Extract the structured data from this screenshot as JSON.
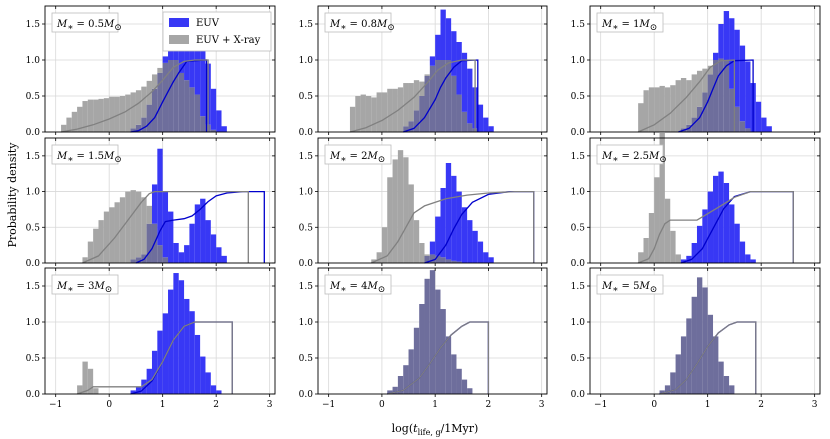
{
  "figure": {
    "ylabel": "Probability density",
    "xlabel_main": "log(",
    "xlabel_var": "t",
    "xlabel_sub": "life, g",
    "xlabel_tail": "/1Myr)",
    "x_ticks": [
      -1,
      0,
      1,
      2,
      3
    ],
    "y_ticks": [
      0.0,
      0.5,
      1.0,
      1.5
    ],
    "xlim": [
      -1.2,
      3.1
    ],
    "ylim": [
      0,
      1.75
    ],
    "legend": {
      "euv": "EUV",
      "xray": "EUV + X-ray"
    },
    "colors": {
      "euv_bar": "#3838f5",
      "xray_bar": "#a6a6a6",
      "overlap_bar": "#6e6e9c",
      "euv_line": "#0000cc",
      "xray_line": "#808080",
      "grid": "#d8d8d8"
    },
    "bin_width": 0.1
  },
  "chart_data": [
    {
      "type": "bar",
      "mass_label": "M* = 0.5M☉",
      "mass_value": "0.5",
      "series": [
        {
          "name": "EUV",
          "bins_start": 0.4,
          "density": [
            0.05,
            0.1,
            0.2,
            0.38,
            0.6,
            0.82,
            1.05,
            1.2,
            1.25,
            1.52,
            1.42,
            1.38,
            1.22,
            1.18,
            0.95,
            0.6,
            0.3,
            0.08
          ]
        },
        {
          "name": "EUV + X-ray",
          "bins_start": -0.9,
          "density": [
            0.1,
            0.2,
            0.28,
            0.35,
            0.43,
            0.45,
            0.45,
            0.46,
            0.47,
            0.49,
            0.49,
            0.5,
            0.52,
            0.55,
            0.58,
            0.63,
            0.71,
            0.8,
            0.89,
            0.96,
            1.0,
            1.0,
            0.82,
            0.72,
            0.62,
            0.52,
            0.22,
            0.1,
            0.03
          ]
        }
      ],
      "cdf": {
        "euv": {
          "x": [
            0.4,
            0.55,
            0.7,
            0.85,
            1.0,
            1.1,
            1.2,
            1.3,
            1.45,
            1.82,
            1.82
          ],
          "y": [
            0.0,
            0.02,
            0.08,
            0.2,
            0.42,
            0.56,
            0.7,
            0.82,
            0.98,
            1.0,
            0.0
          ]
        },
        "xray": {
          "x": [
            -0.9,
            -0.6,
            -0.3,
            0.0,
            0.3,
            0.55,
            0.8,
            1.0,
            1.2,
            1.4,
            1.6,
            1.85,
            1.85
          ],
          "y": [
            0.0,
            0.04,
            0.1,
            0.18,
            0.28,
            0.4,
            0.56,
            0.72,
            0.9,
            0.98,
            1.0,
            1.0,
            0.0
          ]
        }
      }
    },
    {
      "type": "bar",
      "mass_label": "M* = 0.8M☉",
      "mass_value": "0.8",
      "series": [
        {
          "name": "EUV",
          "bins_start": 0.4,
          "density": [
            0.08,
            0.15,
            0.3,
            0.5,
            0.78,
            1.05,
            1.35,
            1.7,
            1.58,
            1.4,
            1.25,
            1.1,
            0.88,
            0.62,
            0.38,
            0.2,
            0.08
          ]
        },
        {
          "name": "EUV + X-ray",
          "bins_start": -0.6,
          "density": [
            0.35,
            0.5,
            0.52,
            0.5,
            0.48,
            0.55,
            0.55,
            0.6,
            0.6,
            0.62,
            0.68,
            0.68,
            0.72,
            0.7,
            0.8,
            0.92,
            1.0,
            1.0,
            1.0,
            0.78,
            0.52,
            0.28,
            0.12,
            0.05
          ]
        }
      ],
      "cdf": {
        "euv": {
          "x": [
            0.4,
            0.6,
            0.8,
            1.0,
            1.1,
            1.2,
            1.35,
            1.5,
            1.8,
            1.8
          ],
          "y": [
            0.0,
            0.05,
            0.2,
            0.45,
            0.62,
            0.75,
            0.9,
            0.99,
            1.0,
            0.0
          ]
        },
        "xray": {
          "x": [
            -0.6,
            -0.3,
            0.0,
            0.3,
            0.6,
            0.85,
            1.05,
            1.25,
            1.5,
            1.75,
            1.75
          ],
          "y": [
            0.0,
            0.06,
            0.16,
            0.3,
            0.48,
            0.68,
            0.86,
            0.96,
            1.0,
            1.0,
            0.0
          ]
        }
      }
    },
    {
      "type": "bar",
      "mass_label": "M* = 1M☉",
      "mass_value": "1",
      "series": [
        {
          "name": "EUV",
          "bins_start": 0.45,
          "density": [
            0.05,
            0.1,
            0.2,
            0.35,
            0.55,
            0.8,
            1.1,
            1.5,
            1.68,
            1.58,
            1.42,
            1.2,
            0.98,
            0.68,
            0.42,
            0.2,
            0.08
          ]
        },
        {
          "name": "EUV + X-ray",
          "bins_start": -0.3,
          "density": [
            0.4,
            0.58,
            0.62,
            0.62,
            0.64,
            0.62,
            0.65,
            0.72,
            0.75,
            0.72,
            0.8,
            0.85,
            0.88,
            0.92,
            1.0,
            1.02,
            1.0,
            0.6,
            0.35,
            0.15,
            0.05
          ]
        }
      ],
      "cdf": {
        "euv": {
          "x": [
            0.45,
            0.65,
            0.85,
            1.0,
            1.1,
            1.2,
            1.35,
            1.5,
            1.85,
            1.85
          ],
          "y": [
            0.0,
            0.05,
            0.2,
            0.42,
            0.6,
            0.78,
            0.92,
            0.99,
            1.0,
            0.0
          ]
        },
        "xray": {
          "x": [
            -0.3,
            0.0,
            0.3,
            0.6,
            0.85,
            1.05,
            1.25,
            1.5,
            1.5
          ],
          "y": [
            0.0,
            0.1,
            0.26,
            0.48,
            0.7,
            0.9,
            0.99,
            1.0,
            0.0
          ]
        }
      }
    },
    {
      "type": "bar",
      "mass_label": "M* = 1.5M☉",
      "mass_value": "1.5",
      "series": [
        {
          "name": "EUV",
          "bins_start": 0.4,
          "density": [
            0.05,
            0.08,
            0.12,
            0.55,
            1.1,
            1.6,
            1.0,
            0.72,
            0.28,
            0.15,
            0.25,
            0.55,
            0.82,
            0.9,
            0.6,
            0.4,
            0.22,
            0.1
          ]
        },
        {
          "name": "EUV + X-ray",
          "bins_start": -0.5,
          "density": [
            0.08,
            0.3,
            0.48,
            0.6,
            0.72,
            0.78,
            0.85,
            0.92,
            1.0,
            1.02,
            1.0,
            0.92,
            0.8,
            0.55,
            0.25,
            0.08
          ]
        }
      ],
      "cdf": {
        "euv": {
          "x": [
            0.5,
            0.65,
            0.8,
            0.95,
            1.05,
            1.2,
            1.4,
            1.55,
            1.7,
            1.85,
            2.0,
            2.2,
            2.5,
            2.9,
            2.9
          ],
          "y": [
            0.0,
            0.05,
            0.2,
            0.45,
            0.58,
            0.6,
            0.62,
            0.66,
            0.75,
            0.86,
            0.94,
            0.98,
            1.0,
            1.0,
            0.0
          ]
        },
        "xray": {
          "x": [
            -0.5,
            -0.2,
            0.1,
            0.4,
            0.6,
            0.75,
            0.85,
            2.6,
            2.6
          ],
          "y": [
            0.0,
            0.1,
            0.35,
            0.65,
            0.85,
            0.97,
            1.0,
            1.0,
            0.0
          ]
        }
      }
    },
    {
      "type": "bar",
      "mass_label": "M* = 2M☉",
      "mass_value": "2",
      "series": [
        {
          "name": "EUV",
          "bins_start": 0.8,
          "density": [
            0.1,
            0.3,
            0.65,
            1.05,
            1.4,
            1.22,
            1.0,
            0.78,
            0.6,
            0.45,
            0.3,
            0.15,
            0.08
          ]
        },
        {
          "name": "EUV + X-ray",
          "bins_start": -0.2,
          "density": [
            0.05,
            0.15,
            0.5,
            1.2,
            1.45,
            1.58,
            1.48,
            1.1,
            0.6,
            0.28,
            0.12,
            0.12,
            0.1,
            0.08,
            0.05,
            0.03,
            0.02
          ]
        }
      ],
      "cdf": {
        "euv": {
          "x": [
            0.8,
            1.0,
            1.2,
            1.35,
            1.5,
            1.7,
            2.0,
            2.4,
            2.85,
            2.85
          ],
          "y": [
            0.0,
            0.05,
            0.25,
            0.48,
            0.68,
            0.85,
            0.96,
            1.0,
            1.0,
            0.0
          ]
        },
        "xray": {
          "x": [
            -0.2,
            0.1,
            0.3,
            0.45,
            0.6,
            0.8,
            1.2,
            1.6,
            2.0,
            2.5,
            2.85,
            2.85
          ],
          "y": [
            0.0,
            0.1,
            0.3,
            0.5,
            0.7,
            0.8,
            0.9,
            0.95,
            0.98,
            1.0,
            1.0,
            0.0
          ]
        }
      }
    },
    {
      "type": "bar",
      "mass_label": "M* = 2.5M☉",
      "mass_value": "2.5",
      "series": [
        {
          "name": "EUV",
          "bins_start": 0.5,
          "density": [
            0.05,
            0.1,
            0.28,
            0.52,
            0.75,
            1.0,
            1.22,
            1.28,
            1.12,
            0.82,
            0.55,
            0.3,
            0.12,
            0.05
          ]
        },
        {
          "name": "EUV + X-ray",
          "bins_start": -0.3,
          "density": [
            0.15,
            0.35,
            0.7,
            1.2,
            1.82,
            0.9,
            0.45,
            0.12
          ]
        }
      ],
      "cdf": {
        "euv": {
          "x": [
            0.5,
            0.7,
            0.9,
            1.1,
            1.3,
            1.5,
            1.8,
            2.6,
            2.6
          ],
          "y": [
            0.0,
            0.05,
            0.2,
            0.48,
            0.76,
            0.93,
            1.0,
            1.0,
            0.0
          ]
        },
        "xray": {
          "x": [
            -0.3,
            -0.1,
            0.0,
            0.1,
            0.2,
            0.3,
            0.8,
            1.2,
            1.5,
            1.8,
            2.6,
            2.6
          ],
          "y": [
            0.0,
            0.06,
            0.2,
            0.4,
            0.55,
            0.6,
            0.6,
            0.78,
            0.92,
            1.0,
            1.0,
            0.0
          ]
        }
      }
    },
    {
      "type": "bar",
      "mass_label": "M* = 3M☉",
      "mass_value": "3",
      "series": [
        {
          "name": "EUV",
          "bins_start": 0.4,
          "density": [
            0.05,
            0.1,
            0.2,
            0.35,
            0.6,
            0.88,
            1.12,
            1.45,
            1.68,
            1.58,
            1.32,
            1.15,
            0.82,
            0.52,
            0.3,
            0.12,
            0.05
          ]
        },
        {
          "name": "EUV + X-ray",
          "bins_start": -0.6,
          "density": [
            0.12,
            0.45,
            0.35,
            0.08
          ]
        }
      ],
      "cdf": {
        "euv": {
          "x": [
            0.4,
            0.6,
            0.8,
            1.0,
            1.2,
            1.4,
            1.6,
            2.3,
            2.3
          ],
          "y": [
            0.0,
            0.04,
            0.18,
            0.45,
            0.75,
            0.94,
            1.0,
            1.0,
            0.0
          ]
        },
        "xray": {
          "x": [
            -0.6,
            -0.4,
            -0.3,
            0.6,
            0.8,
            1.0,
            1.2,
            1.4,
            1.6,
            2.3,
            2.3
          ],
          "y": [
            0.0,
            0.05,
            0.1,
            0.1,
            0.2,
            0.45,
            0.75,
            0.94,
            1.0,
            1.0,
            0.0
          ]
        }
      }
    },
    {
      "type": "bar",
      "mass_label": "M* = 4M☉",
      "mass_value": "4",
      "series": [
        {
          "name": "EUV",
          "bins_start": 0.1,
          "density": [
            0.05,
            0.1,
            0.25,
            0.4,
            0.62,
            0.92,
            1.25,
            1.6,
            1.72,
            1.45,
            1.18,
            0.8,
            0.55,
            0.35,
            0.2,
            0.08
          ]
        },
        {
          "name": "EUV + X-ray",
          "bins_start": 0.1,
          "density": [
            0.05,
            0.1,
            0.25,
            0.4,
            0.62,
            0.92,
            1.25,
            1.6,
            1.72,
            1.45,
            1.18,
            0.8,
            0.55,
            0.35,
            0.2,
            0.08
          ]
        }
      ],
      "cdf": {
        "euv": {
          "x": [
            0.1,
            0.4,
            0.7,
            0.9,
            1.1,
            1.3,
            1.5,
            1.65,
            2.0,
            2.0
          ],
          "y": [
            0.0,
            0.05,
            0.22,
            0.42,
            0.64,
            0.82,
            0.94,
            1.0,
            1.0,
            0.0
          ]
        },
        "xray": {
          "x": [
            0.1,
            0.4,
            0.7,
            0.9,
            1.1,
            1.3,
            1.5,
            1.65,
            2.0,
            2.0
          ],
          "y": [
            0.0,
            0.05,
            0.22,
            0.42,
            0.64,
            0.82,
            0.94,
            1.0,
            1.0,
            0.0
          ]
        }
      }
    },
    {
      "type": "bar",
      "mass_label": "M* = 5M☉",
      "mass_value": "5",
      "series": [
        {
          "name": "EUV",
          "bins_start": 0.1,
          "density": [
            0.05,
            0.12,
            0.3,
            0.55,
            0.8,
            1.05,
            1.35,
            1.62,
            1.48,
            1.1,
            0.8,
            0.45,
            0.25,
            0.12
          ]
        },
        {
          "name": "EUV + X-ray",
          "bins_start": 0.1,
          "density": [
            0.05,
            0.12,
            0.3,
            0.55,
            0.8,
            1.05,
            1.35,
            1.62,
            1.48,
            1.1,
            0.8,
            0.45,
            0.25,
            0.12
          ]
        }
      ],
      "cdf": {
        "euv": {
          "x": [
            0.1,
            0.4,
            0.6,
            0.8,
            1.0,
            1.2,
            1.4,
            1.55,
            1.9,
            1.9
          ],
          "y": [
            0.0,
            0.06,
            0.2,
            0.42,
            0.66,
            0.85,
            0.96,
            1.0,
            1.0,
            0.0
          ]
        },
        "xray": {
          "x": [
            0.1,
            0.4,
            0.6,
            0.8,
            1.0,
            1.2,
            1.4,
            1.55,
            1.9,
            1.9
          ],
          "y": [
            0.0,
            0.06,
            0.2,
            0.42,
            0.66,
            0.85,
            0.96,
            1.0,
            1.0,
            0.0
          ]
        }
      }
    }
  ]
}
